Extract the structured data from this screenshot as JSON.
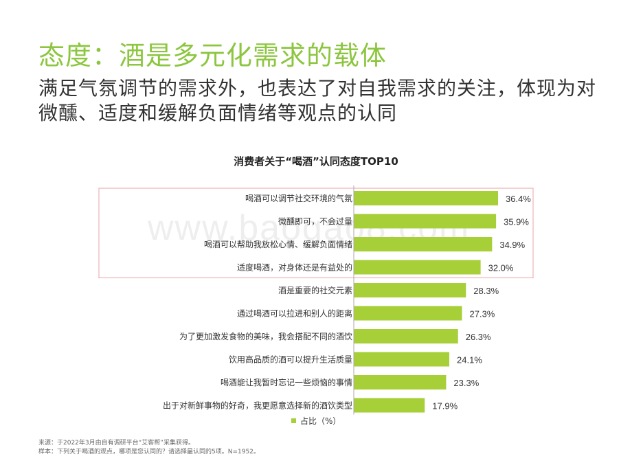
{
  "header": {
    "title": "态度：酒是多元化需求的载体",
    "subtitle": "满足气氛调节的需求外，也表达了对自我需求的关注，体现为对微醺、适度和缓解负面情绪等观点的认同"
  },
  "watermark": "www.baogao8.com",
  "chart_data": {
    "type": "bar",
    "orientation": "horizontal",
    "title": "消费者关于“喝酒”认同态度TOP10",
    "categories": [
      "喝酒可以调节社交环境的气氛",
      "微醺即可，不会过量",
      "喝酒可以帮助我放松心情、缓解负面情绪",
      "适度喝酒，对身体还是有益处的",
      "酒是重要的社交元素",
      "通过喝酒可以拉进和别人的距离",
      "为了更加激发食物的美味，我会搭配不同的酒饮",
      "饮用高品质的酒可以提升生活质量",
      "喝酒能让我暂时忘记一些烦恼的事情",
      "出于对新鲜事物的好奇，我更愿意选择新的酒饮类型"
    ],
    "series": [
      {
        "name": "占比（%）",
        "values": [
          36.4,
          35.9,
          34.9,
          32.0,
          28.3,
          27.3,
          26.3,
          24.1,
          23.3,
          17.9
        ],
        "labels": [
          "36.4%",
          "35.9%",
          "34.9%",
          "32.0%",
          "28.3%",
          "27.3%",
          "26.3%",
          "24.1%",
          "23.3%",
          "17.9%"
        ]
      }
    ],
    "highlighted_categories": [
      1,
      2,
      3,
      4
    ],
    "legend_position": "bottom",
    "grid": false,
    "colors": {
      "bar": "#a6cf38",
      "highlight_box": "#e8a0a8",
      "axis": "#aaaaaa"
    }
  },
  "footer": {
    "source": "来源：于2022年3月由自有调研平台“艾客帮”采集获得。",
    "sample": "样本：下列关于喝酒的观点，哪项是您认同的？请选择最认同的5项。N=1952。"
  }
}
